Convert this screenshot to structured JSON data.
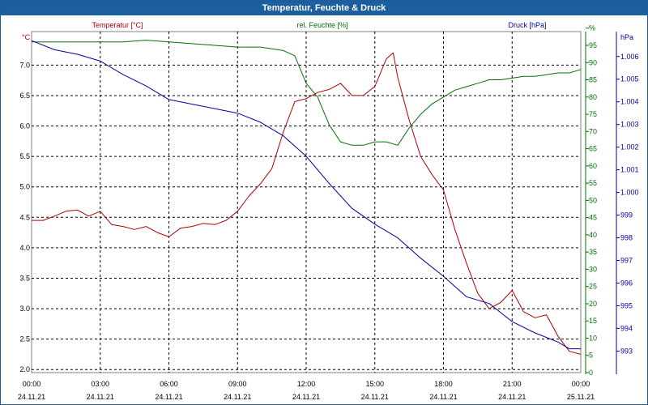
{
  "window": {
    "title": "Temperatur, Feuchte & Druck"
  },
  "colors": {
    "temperature": "#b00000",
    "humidity": "#007000",
    "pressure": "#00009a",
    "titlebar": "#1c5f9f",
    "grid": "#000000"
  },
  "chart_data": {
    "type": "line",
    "title": "Temperatur, Feuchte & Druck",
    "x_ticks": [
      {
        "time": "00:00",
        "date": "24.11.21"
      },
      {
        "time": "03:00",
        "date": "24.11.21"
      },
      {
        "time": "06:00",
        "date": "24.11.21"
      },
      {
        "time": "09:00",
        "date": "24.11.21"
      },
      {
        "time": "12:00",
        "date": "24.11.21"
      },
      {
        "time": "15:00",
        "date": "24.11.21"
      },
      {
        "time": "18:00",
        "date": "24.11.21"
      },
      {
        "time": "21:00",
        "date": "24.11.21"
      },
      {
        "time": "00:00",
        "date": "25.11.21"
      }
    ],
    "x_range_hours": [
      0,
      24
    ],
    "axes": {
      "temperature": {
        "unit": "°C",
        "legend": "Temperatur [°C]",
        "ylim": [
          1.95,
          7.55
        ],
        "ticks": [
          "2.0",
          "2.5",
          "3.0",
          "3.5",
          "4.0",
          "4.5",
          "5.0",
          "5.5",
          "6.0",
          "6.5",
          "7.0"
        ]
      },
      "humidity": {
        "unit": "%",
        "legend": "rel. Feuchte [%]",
        "ylim": [
          0,
          99
        ],
        "ticks": [
          "0",
          "5",
          "10",
          "15",
          "20",
          "25",
          "30",
          "35",
          "40",
          "45",
          "50",
          "55",
          "60",
          "65",
          "70",
          "75",
          "80",
          "85",
          "90",
          "95",
          "%"
        ]
      },
      "pressure": {
        "unit": "hPa",
        "legend": "Druck [hPa]",
        "ylim": [
          992.05,
          1007.1
        ],
        "ticks": [
          "993",
          "994",
          "995",
          "996",
          "997",
          "998",
          "999",
          "1.000",
          "1.001",
          "1.002",
          "1.003",
          "1.004",
          "1.005",
          "1.006"
        ]
      }
    },
    "series": [
      {
        "name": "Temperatur [°C]",
        "axis": "temperature",
        "x": [
          0,
          0.5,
          1,
          1.5,
          2,
          2.5,
          3,
          3.5,
          4,
          4.5,
          5,
          5.5,
          6,
          6.5,
          7,
          7.5,
          8,
          8.5,
          9,
          9.5,
          10,
          10.5,
          11,
          11.5,
          12,
          12.5,
          13,
          13.5,
          14,
          14.5,
          15,
          15.5,
          15.8,
          16,
          16.5,
          17,
          17.5,
          18,
          18.5,
          19,
          19.5,
          20,
          20.5,
          21,
          21.5,
          22,
          22.5,
          23,
          23.5,
          24
        ],
        "values": [
          4.45,
          4.45,
          4.52,
          4.6,
          4.62,
          4.52,
          4.6,
          4.38,
          4.35,
          4.3,
          4.35,
          4.25,
          4.18,
          4.32,
          4.35,
          4.4,
          4.38,
          4.45,
          4.6,
          4.85,
          5.05,
          5.3,
          5.9,
          6.4,
          6.45,
          6.55,
          6.6,
          6.7,
          6.5,
          6.5,
          6.65,
          7.1,
          7.2,
          6.8,
          6.1,
          5.5,
          5.2,
          4.95,
          4.3,
          3.75,
          3.25,
          3.0,
          3.1,
          3.3,
          2.95,
          2.85,
          2.9,
          2.55,
          2.3,
          2.25
        ]
      },
      {
        "name": "rel. Feuchte [%]",
        "axis": "humidity",
        "x": [
          0,
          1,
          2,
          3,
          4,
          5,
          6,
          7,
          8,
          9,
          10,
          10.5,
          11,
          11.5,
          12,
          12.5,
          13,
          13.5,
          14,
          14.5,
          15,
          15.5,
          16,
          16.5,
          17,
          17.5,
          18,
          18.5,
          19,
          19.5,
          20,
          20.5,
          21,
          21.5,
          22,
          22.5,
          23,
          23.5,
          24
        ],
        "values": [
          96,
          96,
          96,
          96,
          96,
          96.5,
          96,
          95.5,
          95,
          94.5,
          94.5,
          94,
          93.5,
          92,
          84,
          80,
          72,
          67,
          66,
          66,
          67,
          67,
          66,
          71,
          75,
          78,
          80,
          82,
          83,
          84,
          85,
          85,
          85.5,
          86,
          86,
          86.5,
          87,
          87,
          88
        ]
      },
      {
        "name": "Druck [hPa]",
        "axis": "pressure",
        "x": [
          0,
          1,
          2,
          3,
          4,
          5,
          6,
          7,
          8,
          9,
          10,
          11,
          12,
          13,
          14,
          15,
          16,
          17,
          18,
          19,
          20,
          21,
          22,
          23,
          23.5,
          24
        ],
        "values": [
          1006.7,
          1006.3,
          1006.1,
          1005.8,
          1005.2,
          1004.7,
          1004.1,
          1003.9,
          1003.7,
          1003.5,
          1003.1,
          1002.5,
          1001.6,
          1000.4,
          999.3,
          998.6,
          998.0,
          997.1,
          996.3,
          995.4,
          995.1,
          994.3,
          993.8,
          993.4,
          993.1,
          993.1
        ]
      }
    ]
  }
}
